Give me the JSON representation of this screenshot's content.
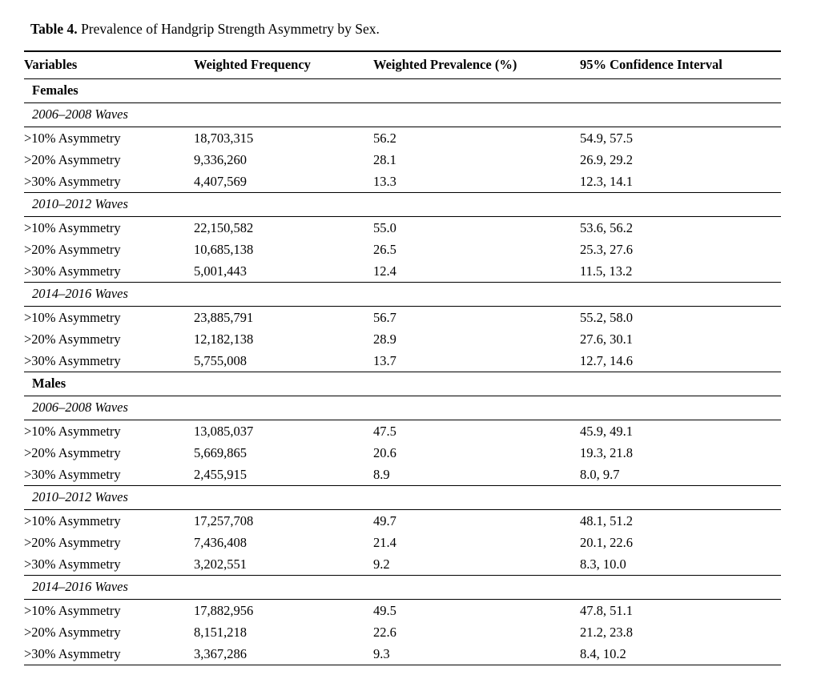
{
  "caption": {
    "label": "Table 4.",
    "text": " Prevalence of Handgrip Strength Asymmetry by Sex."
  },
  "table": {
    "columns": [
      "Variables",
      "Weighted Frequency",
      "Weighted Prevalence (%)",
      "95% Confidence Interval"
    ],
    "groups": [
      {
        "sex": "Females",
        "waves": [
          {
            "label": "2006–2008 Waves",
            "rows": [
              {
                "variable": ">10% Asymmetry",
                "frequency": "18,703,315",
                "prevalence": "56.2",
                "ci": "54.9, 57.5"
              },
              {
                "variable": ">20% Asymmetry",
                "frequency": "9,336,260",
                "prevalence": "28.1",
                "ci": "26.9, 29.2"
              },
              {
                "variable": ">30% Asymmetry",
                "frequency": "4,407,569",
                "prevalence": "13.3",
                "ci": "12.3, 14.1"
              }
            ]
          },
          {
            "label": "2010–2012 Waves",
            "rows": [
              {
                "variable": ">10% Asymmetry",
                "frequency": "22,150,582",
                "prevalence": "55.0",
                "ci": "53.6, 56.2"
              },
              {
                "variable": ">20% Asymmetry",
                "frequency": "10,685,138",
                "prevalence": "26.5",
                "ci": "25.3, 27.6"
              },
              {
                "variable": ">30% Asymmetry",
                "frequency": "5,001,443",
                "prevalence": "12.4",
                "ci": "11.5, 13.2"
              }
            ]
          },
          {
            "label": "2014–2016 Waves",
            "rows": [
              {
                "variable": ">10% Asymmetry",
                "frequency": "23,885,791",
                "prevalence": "56.7",
                "ci": "55.2, 58.0"
              },
              {
                "variable": ">20% Asymmetry",
                "frequency": "12,182,138",
                "prevalence": "28.9",
                "ci": "27.6, 30.1"
              },
              {
                "variable": ">30% Asymmetry",
                "frequency": "5,755,008",
                "prevalence": "13.7",
                "ci": "12.7, 14.6"
              }
            ]
          }
        ]
      },
      {
        "sex": "Males",
        "waves": [
          {
            "label": "2006–2008 Waves",
            "rows": [
              {
                "variable": ">10% Asymmetry",
                "frequency": "13,085,037",
                "prevalence": "47.5",
                "ci": "45.9, 49.1"
              },
              {
                "variable": ">20% Asymmetry",
                "frequency": "5,669,865",
                "prevalence": "20.6",
                "ci": "19.3, 21.8"
              },
              {
                "variable": ">30% Asymmetry",
                "frequency": "2,455,915",
                "prevalence": "8.9",
                "ci": "8.0, 9.7"
              }
            ]
          },
          {
            "label": "2010–2012 Waves",
            "rows": [
              {
                "variable": ">10% Asymmetry",
                "frequency": "17,257,708",
                "prevalence": "49.7",
                "ci": "48.1, 51.2"
              },
              {
                "variable": ">20% Asymmetry",
                "frequency": "7,436,408",
                "prevalence": "21.4",
                "ci": "20.1, 22.6"
              },
              {
                "variable": ">30% Asymmetry",
                "frequency": "3,202,551",
                "prevalence": "9.2",
                "ci": "8.3, 10.0"
              }
            ]
          },
          {
            "label": "2014–2016 Waves",
            "rows": [
              {
                "variable": ">10% Asymmetry",
                "frequency": "17,882,956",
                "prevalence": "49.5",
                "ci": "47.8, 51.1"
              },
              {
                "variable": ">20% Asymmetry",
                "frequency": "8,151,218",
                "prevalence": "22.6",
                "ci": "21.2, 23.8"
              },
              {
                "variable": ">30% Asymmetry",
                "frequency": "3,367,286",
                "prevalence": "9.3",
                "ci": "8.4, 10.2"
              }
            ]
          }
        ]
      }
    ]
  }
}
